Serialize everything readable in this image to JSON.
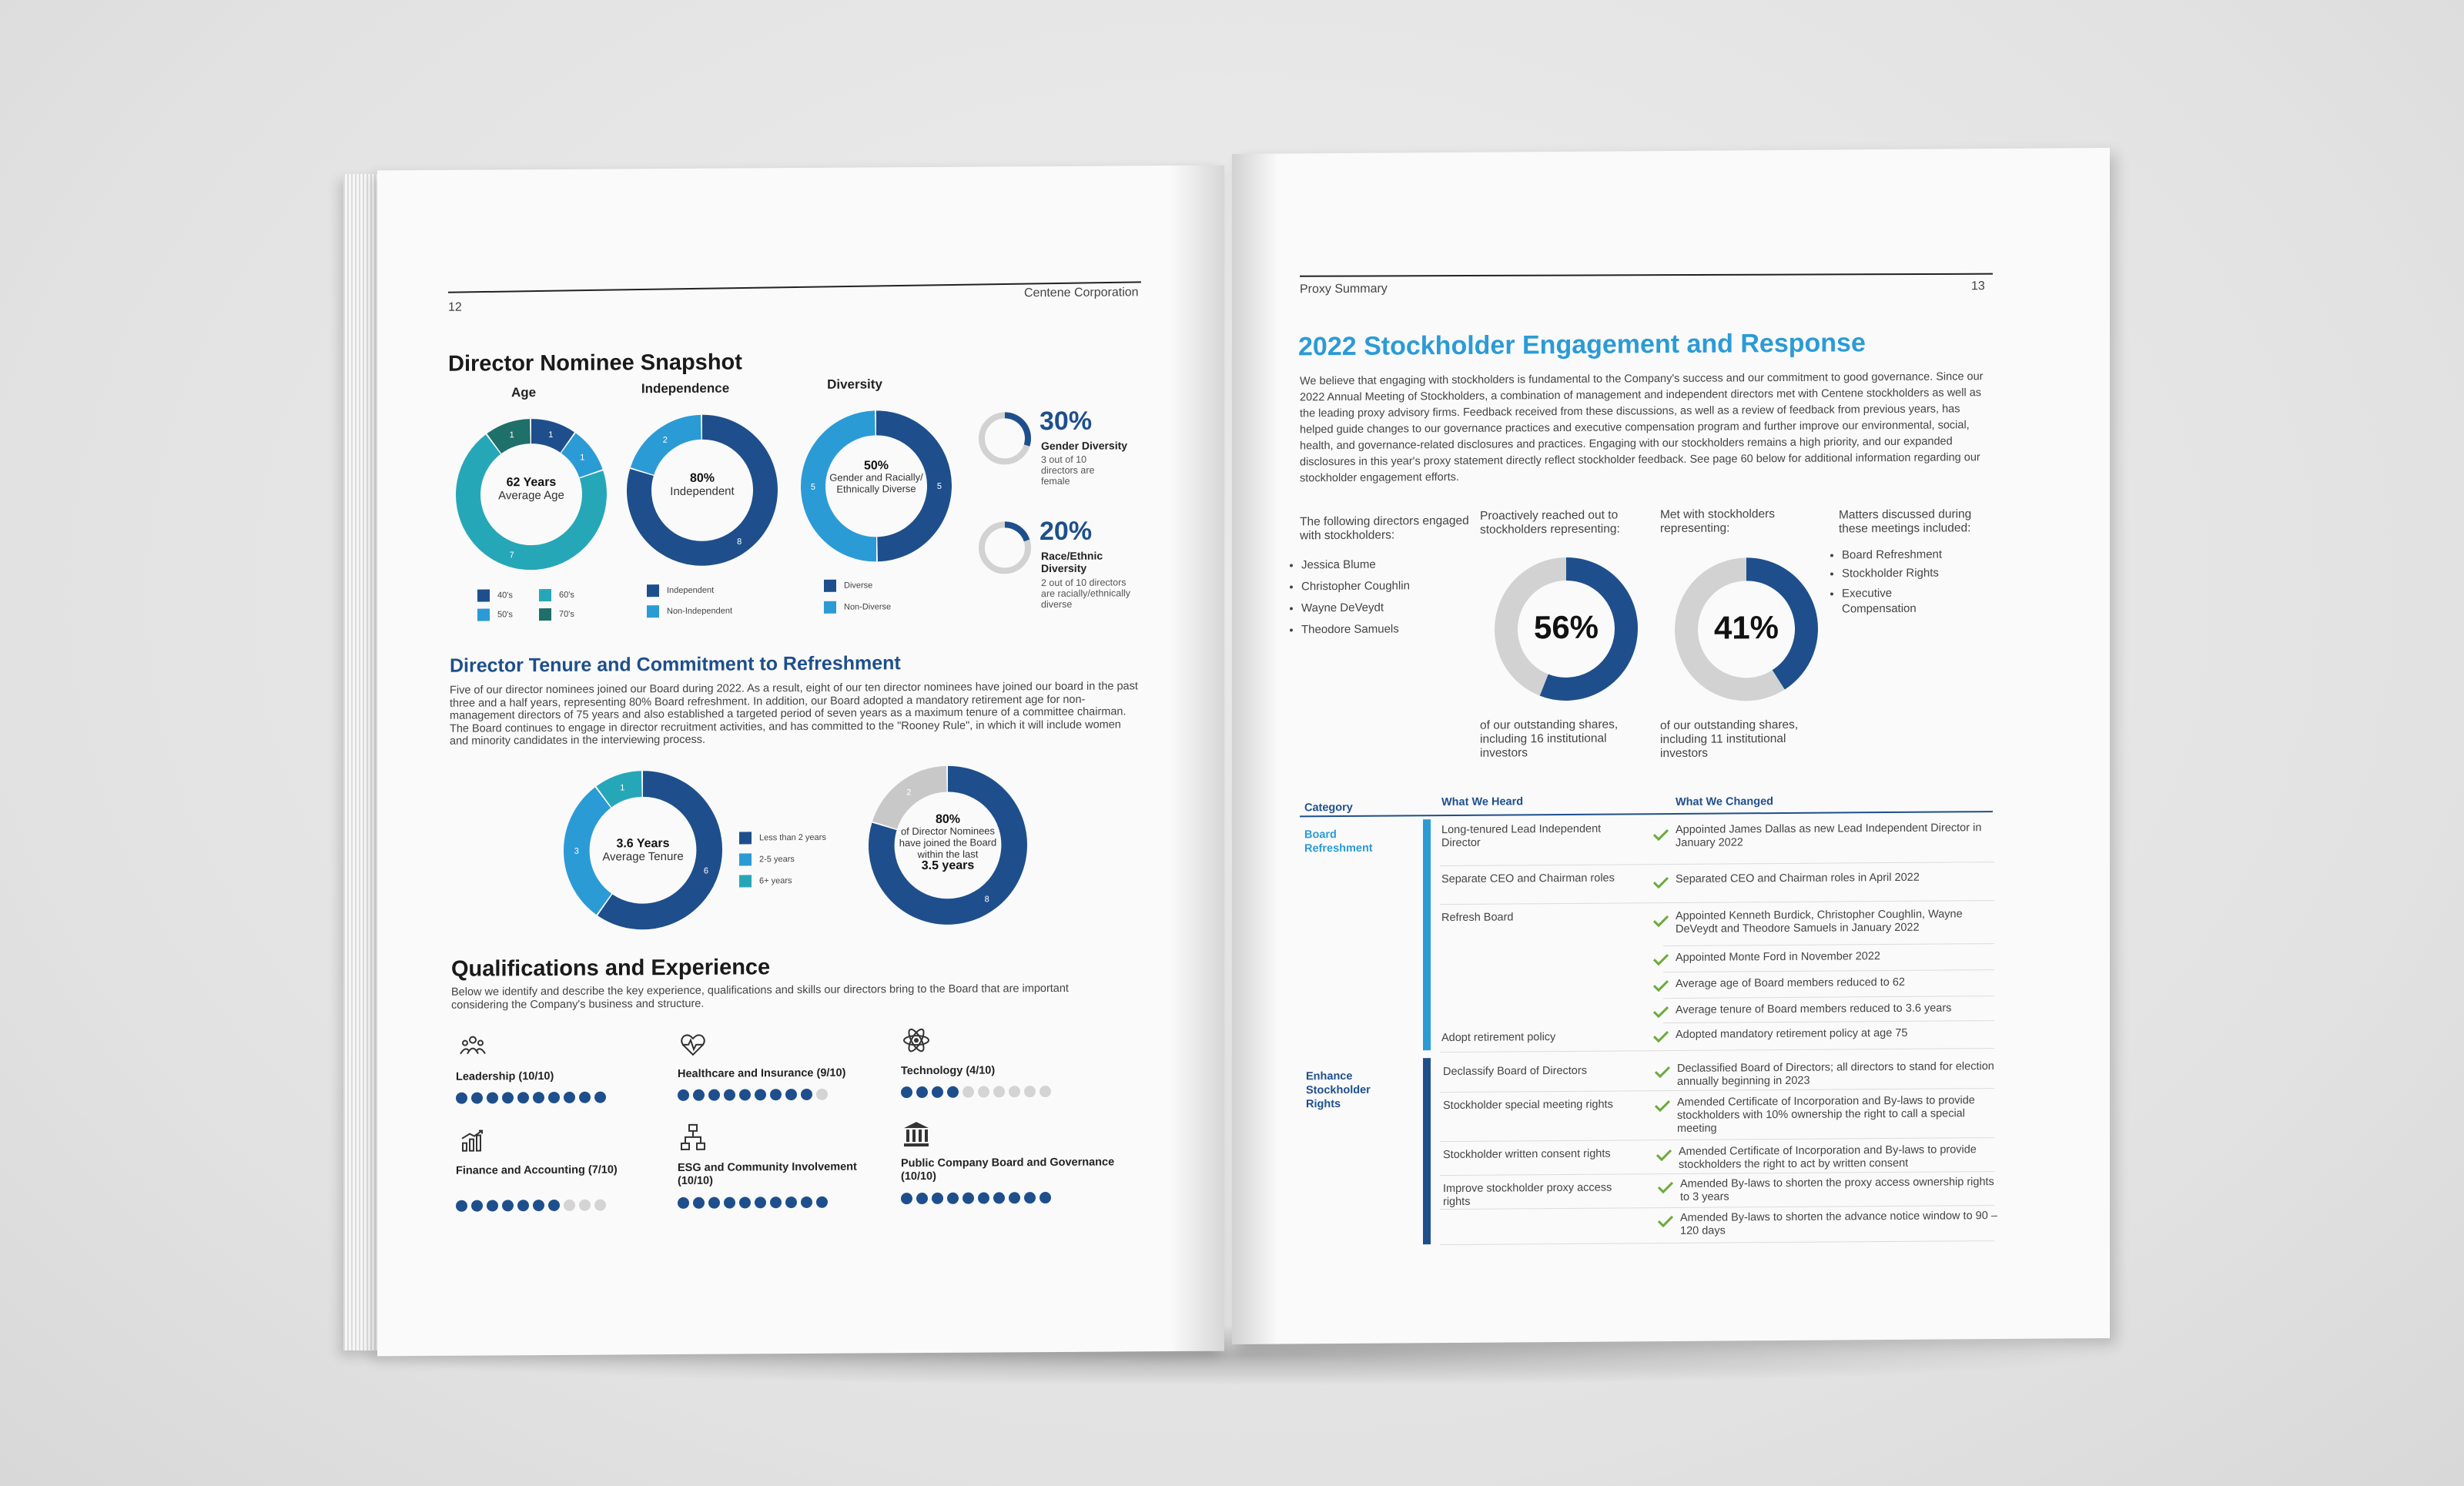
{
  "left": {
    "page_number": "12",
    "company": "Centene Corporation",
    "title": "Director Nominee Snapshot",
    "age": {
      "title": "Age",
      "center_bold": "62 Years",
      "center_text": "Average Age",
      "segments": [
        {
          "label": "40's",
          "value": 1,
          "color": "#1e4f8c"
        },
        {
          "label": "50's",
          "value": 1,
          "color": "#2b9bd6"
        },
        {
          "label": "60's",
          "value": 7,
          "color": "#26a7b8"
        },
        {
          "label": "70's",
          "value": 1,
          "color": "#1f6f6a"
        }
      ]
    },
    "independence": {
      "title": "Independence",
      "center_bold": "80%",
      "center_text": "Independent",
      "segments": [
        {
          "label": "Independent",
          "value": 8,
          "color": "#1e4f8c"
        },
        {
          "label": "Non-Independent",
          "value": 2,
          "color": "#2b9bd6"
        }
      ]
    },
    "diversity": {
      "title": "Diversity",
      "center_bold": "50%",
      "center_text": "Gender and Racially/ Ethnically Diverse",
      "segments": [
        {
          "label": "Diverse",
          "value": 5,
          "color": "#1e4f8c"
        },
        {
          "label": "Non-Diverse",
          "value": 5,
          "color": "#2b9bd6"
        }
      ]
    },
    "gender_stat": {
      "value": "30%",
      "fraction": 0.3,
      "label": "Gender Diversity",
      "sub": "3 out of 10 directors are female"
    },
    "race_stat": {
      "value": "20%",
      "fraction": 0.2,
      "label": "Race/Ethnic Diversity",
      "sub": "2 out of 10 directors are racially/ethnically diverse"
    },
    "tenure_title": "Director Tenure and Commitment to Refreshment",
    "tenure_text": "Five of our director nominees joined our Board during 2022. As a result, eight of our ten director nominees have joined our board in the past three and a half years, representing 80% Board refreshment. In addition, our Board adopted a mandatory retirement age for non-management directors of 75 years and also established a targeted period of seven years as a maximum tenure of a committee chairman. The Board continues to engage in director recruitment activities, and has committed to the \"Rooney Rule\", in which it will include women and minority candidates in the interviewing process.",
    "tenure": {
      "center_bold": "3.6 Years",
      "center_text": "Average Tenure",
      "segments": [
        {
          "label": "Less than 2 years",
          "value": 6,
          "color": "#1e4f8c"
        },
        {
          "label": "2-5 years",
          "value": 3,
          "color": "#2b9bd6"
        },
        {
          "label": "6+ years",
          "value": 1,
          "color": "#26a7b8"
        }
      ]
    },
    "refresh": {
      "center_bold": "80%",
      "center_text": "of Director Nominees have joined the Board within the last",
      "center_bold2": "3.5 years",
      "segments": [
        {
          "label": "",
          "value": 8,
          "color": "#1e4f8c"
        },
        {
          "label": "",
          "value": 2,
          "color": "#c8c8c8"
        }
      ]
    },
    "qual_title": "Qualifications and Experience",
    "qual_text": "Below we identify and describe the key experience, qualifications and skills our directors bring to the Board that are important considering the Company's business and structure.",
    "qualifications": [
      {
        "label": "Leadership (10/10)",
        "score": 10,
        "icon": "people-icon"
      },
      {
        "label": "Healthcare and Insurance (9/10)",
        "score": 9,
        "icon": "heart-pulse-icon"
      },
      {
        "label": "Technology (4/10)",
        "score": 4,
        "icon": "atom-icon"
      },
      {
        "label": "Finance and Accounting (7/10)",
        "score": 7,
        "icon": "bar-chart-icon"
      },
      {
        "label": "ESG and Community Involvement (10/10)",
        "score": 10,
        "icon": "network-icon"
      },
      {
        "label": "Public Company Board and Governance (10/10)",
        "score": 10,
        "icon": "bank-icon"
      }
    ]
  },
  "right": {
    "section": "Proxy Summary",
    "page_number": "13",
    "title": "2022 Stockholder Engagement and Response",
    "intro": "We believe that engaging with stockholders is fundamental to the Company's success and our commitment to good governance. Since our 2022 Annual Meeting of Stockholders, a combination of management and independent directors met with Centene stockholders as well as the leading proxy advisory firms. Feedback received from these discussions, as well as a review of feedback from previous years, has helped guide changes to our governance practices and executive compensation program and further improve our environmental, social, health, and governance-related disclosures and practices. Engaging with our stockholders remains a high priority, and our expanded disclosures in this year's proxy statement directly reflect stockholder feedback. See page 60 below for additional information regarding our stockholder engagement efforts.",
    "directors_head": "The following directors engaged with stockholders:",
    "directors": [
      "Jessica Blume",
      "Christopher Coughlin",
      "Wayne DeVeydt",
      "Theodore Samuels"
    ],
    "reached_head": "Proactively reached out to stockholders representing:",
    "reached": {
      "value": "56%",
      "fraction": 0.56,
      "caption": "of our outstanding shares, including 16 institutional investors"
    },
    "met_head": "Met with stockholders representing:",
    "met": {
      "value": "41%",
      "fraction": 0.41,
      "caption": "of our outstanding shares, including 11 institutional investors"
    },
    "matters_head": "Matters discussed during these meetings included:",
    "matters": [
      "Board Refreshment",
      "Stockholder Rights",
      "Executive Compensation"
    ],
    "table": {
      "headers": [
        "Category",
        "What We Heard",
        "What We Changed"
      ],
      "cat1": "Board Refreshment",
      "cat2": "Enhance Stockholder Rights",
      "heard": [
        "Long-tenured Lead Independent Director",
        "Separate CEO and Chairman roles",
        "Refresh Board",
        "Adopt retirement policy",
        "Declassify Board of Directors",
        "Stockholder special meeting rights",
        "Stockholder written consent rights",
        "Improve stockholder proxy access rights"
      ],
      "changed": [
        "Appointed James Dallas as new Lead Independent Director in January 2022",
        "Separated CEO and Chairman roles in April 2022",
        "Appointed Kenneth Burdick, Christopher Coughlin, Wayne DeVeydt and Theodore Samuels in January 2022",
        "Appointed Monte Ford in November 2022",
        "Average age of Board members reduced to 62",
        "Average tenure of Board members reduced to 3.6 years",
        "Adopted mandatory retirement policy at age 75",
        "Declassified Board of Directors; all directors to stand for election annually beginning in 2023",
        "Amended Certificate of Incorporation and By-laws to provide stockholders with 10% ownership the right to call a special meeting",
        "Amended Certificate of Incorporation and By-laws to provide stockholders the right to act by written consent",
        "Amended By-laws to shorten the proxy access ownership rights to 3 years",
        "Amended By-laws to shorten the advance notice window to 90 – 120 days"
      ]
    }
  }
}
